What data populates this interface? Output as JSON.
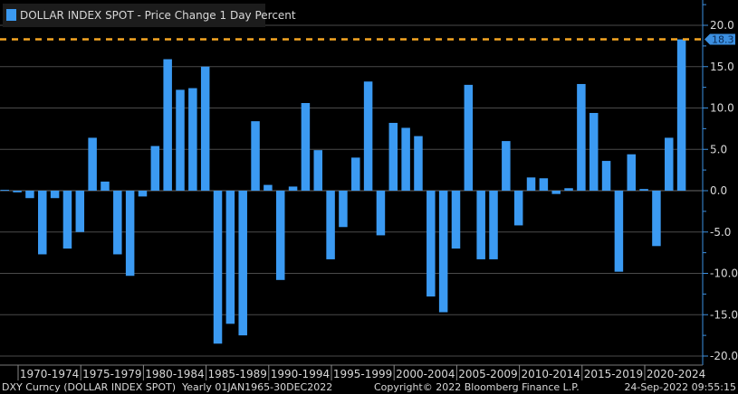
{
  "chart_data": {
    "type": "bar",
    "title": "DOLLAR INDEX SPOT - Price Change 1 Day Percent",
    "legend": [
      {
        "label": "DOLLAR INDEX SPOT - Price Change 1 Day Percent",
        "color": "#3b9af2"
      }
    ],
    "legend_position": "top-left",
    "x": [
      1968,
      1969,
      1970,
      1971,
      1972,
      1973,
      1974,
      1975,
      1976,
      1977,
      1978,
      1979,
      1980,
      1981,
      1982,
      1983,
      1984,
      1985,
      1986,
      1987,
      1988,
      1989,
      1990,
      1991,
      1992,
      1993,
      1994,
      1995,
      1996,
      1997,
      1998,
      1999,
      2000,
      2001,
      2002,
      2003,
      2004,
      2005,
      2006,
      2007,
      2008,
      2009,
      2010,
      2011,
      2012,
      2013,
      2014,
      2015,
      2016,
      2017,
      2018,
      2019,
      2020,
      2021,
      2022
    ],
    "values": [
      0.1,
      -0.2,
      -0.9,
      -7.7,
      -0.9,
      -7.0,
      -5.0,
      6.4,
      1.1,
      -7.7,
      -10.3,
      -0.7,
      5.4,
      15.9,
      12.2,
      12.4,
      15.0,
      -18.5,
      -16.1,
      -17.5,
      8.4,
      0.7,
      -10.8,
      0.5,
      10.6,
      4.9,
      -8.3,
      -4.4,
      4.0,
      13.2,
      -5.4,
      8.2,
      7.6,
      6.6,
      -12.8,
      -14.7,
      -7.0,
      12.8,
      -8.3,
      -8.3,
      6.0,
      -4.2,
      1.6,
      1.5,
      -0.4,
      0.3,
      12.9,
      9.4,
      3.6,
      -9.8,
      4.4,
      0.2,
      -6.7,
      6.4,
      18.3
    ],
    "x_groups": [
      "1970-1974",
      "1975-1979",
      "1980-1984",
      "1985-1989",
      "1990-1994",
      "1995-1999",
      "2000-2004",
      "2005-2009",
      "2010-2014",
      "2015-2019",
      "2020-2024"
    ],
    "y_ticks": [
      "20.0",
      "15.0",
      "10.0",
      "5.0",
      "0.0",
      "-5.0",
      "-10.0",
      "-15.0",
      "-20.0"
    ],
    "y_tick_values": [
      20,
      15,
      10,
      5,
      0,
      -5,
      -10,
      -15,
      -20
    ],
    "ylim": [
      -20,
      20
    ],
    "grid": true,
    "reference_line": {
      "value": 18.3,
      "label": "18.3",
      "color": "#f5a623"
    },
    "bar_color": "#3b9af2"
  },
  "footer": {
    "left": "DXY Curncy (DOLLAR INDEX SPOT)  Yearly 01JAN1965-30DEC2022",
    "center": "Copyright© 2022 Bloomberg Finance L.P.",
    "right": "24-Sep-2022 09:55:15"
  }
}
